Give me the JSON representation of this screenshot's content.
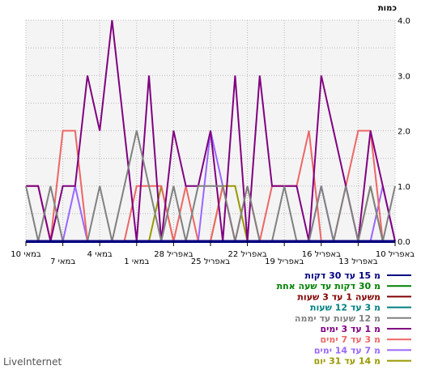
{
  "chart_data": {
    "type": "line",
    "ylabel": "כמות",
    "ylim": [
      0,
      4
    ],
    "yticks": [
      "0.0",
      "1.0",
      "2.0",
      "3.0",
      "4.0"
    ],
    "grid": true,
    "x_tick_labels": [
      "10 במאי",
      "7 במאי",
      "4 במאי",
      "1 במאי",
      "28 באפריל",
      "25 באפריל",
      "22 באפריל",
      "19 באפריל",
      "16 באפריל",
      "13 באפריל",
      "10 באפריל"
    ],
    "x": [
      "10 במאי",
      "9 במאי",
      "8 במאי",
      "7 במאי",
      "6 במאי",
      "5 במאי",
      "4 במאי",
      "3 במאי",
      "2 במאי",
      "1 במאי",
      "30 באפריל",
      "29 באפריל",
      "28 באפריל",
      "27 באפריל",
      "26 באפריל",
      "25 באפריל",
      "24 באפריל",
      "23 באפריל",
      "22 באפריל",
      "21 באפריל",
      "20 באפריל",
      "19 באפריל",
      "18 באפריל",
      "17 באפריל",
      "16 באפריל",
      "15 באפריל",
      "14 באפריל",
      "13 באפריל",
      "12 באפריל",
      "11 באפריל",
      "10 באפריל"
    ],
    "series": [
      {
        "name": "מ 15 עד 30 דקות",
        "color": "#000080",
        "values": [
          0,
          0,
          0,
          0,
          0,
          0,
          0,
          0,
          0,
          0,
          0,
          0,
          0,
          0,
          0,
          0,
          0,
          0,
          0,
          0,
          0,
          0,
          0,
          0,
          0,
          0,
          0,
          0,
          0,
          0,
          0
        ]
      },
      {
        "name": "מ 30 דקות עד שעה אחת",
        "color": "#008000",
        "values": [
          0,
          0,
          0,
          0,
          0,
          0,
          0,
          0,
          0,
          0,
          0,
          0,
          0,
          0,
          0,
          0,
          0,
          0,
          0,
          0,
          0,
          0,
          0,
          0,
          0,
          0,
          0,
          0,
          0,
          0,
          0
        ]
      },
      {
        "name": "משעה 1 עד 3 שעות",
        "color": "#800000",
        "values": [
          0,
          0,
          0,
          0,
          0,
          0,
          0,
          0,
          0,
          0,
          0,
          0,
          0,
          0,
          0,
          0,
          0,
          0,
          0,
          0,
          0,
          0,
          0,
          0,
          0,
          0,
          0,
          0,
          0,
          0,
          0
        ]
      },
      {
        "name": "מ 3 עד 12 שעות",
        "color": "#008080",
        "values": [
          0,
          0,
          0,
          0,
          0,
          0,
          0,
          0,
          0,
          0,
          0,
          0,
          0,
          0,
          0,
          0,
          0,
          0,
          0,
          0,
          0,
          0,
          0,
          0,
          0,
          0,
          0,
          0,
          0,
          0,
          0
        ]
      },
      {
        "name": "מ 12 שעות עד יממה",
        "color": "#808080",
        "values": [
          1,
          0,
          1,
          0,
          0,
          0,
          1,
          0,
          1,
          2,
          1,
          0,
          1,
          0,
          1,
          1,
          1,
          0,
          1,
          0,
          0,
          1,
          0,
          0,
          1,
          0,
          1,
          0,
          1,
          0,
          1
        ]
      },
      {
        "name": "מ 1 עד 3 ימים",
        "color": "#800080",
        "values": [
          1,
          1,
          0,
          1,
          1,
          3,
          2,
          4,
          2,
          0,
          3,
          0,
          2,
          1,
          1,
          2,
          0,
          3,
          0,
          3,
          1,
          1,
          1,
          0,
          3,
          2,
          1,
          0,
          2,
          1,
          0
        ]
      },
      {
        "name": "מ 3 עד 7 ימים",
        "color": "#ee6666",
        "values": [
          1,
          1,
          0,
          2,
          2,
          0,
          0,
          0,
          0,
          1,
          1,
          1,
          0,
          1,
          0,
          0,
          1,
          0,
          1,
          0,
          1,
          1,
          1,
          2,
          0,
          0,
          1,
          2,
          2,
          0,
          0
        ]
      },
      {
        "name": "מ 7 עד 14 ימים",
        "color": "#9966ff",
        "values": [
          0,
          0,
          0,
          0,
          1,
          0,
          0,
          0,
          0,
          0,
          0,
          0,
          0,
          0,
          0,
          2,
          1,
          0,
          0,
          0,
          0,
          0,
          0,
          0,
          1,
          0,
          0,
          0,
          0,
          1,
          0
        ]
      },
      {
        "name": "מ 14 עד 31 יום",
        "color": "#999900",
        "values": [
          0,
          0,
          0,
          0,
          0,
          0,
          0,
          0,
          0,
          0,
          0,
          1,
          0,
          0,
          0,
          0,
          1,
          1,
          0,
          0,
          0,
          0,
          0,
          0,
          0,
          0,
          0,
          0,
          1,
          0,
          0
        ]
      }
    ]
  },
  "footer": {
    "brand": "LiveInternet"
  }
}
